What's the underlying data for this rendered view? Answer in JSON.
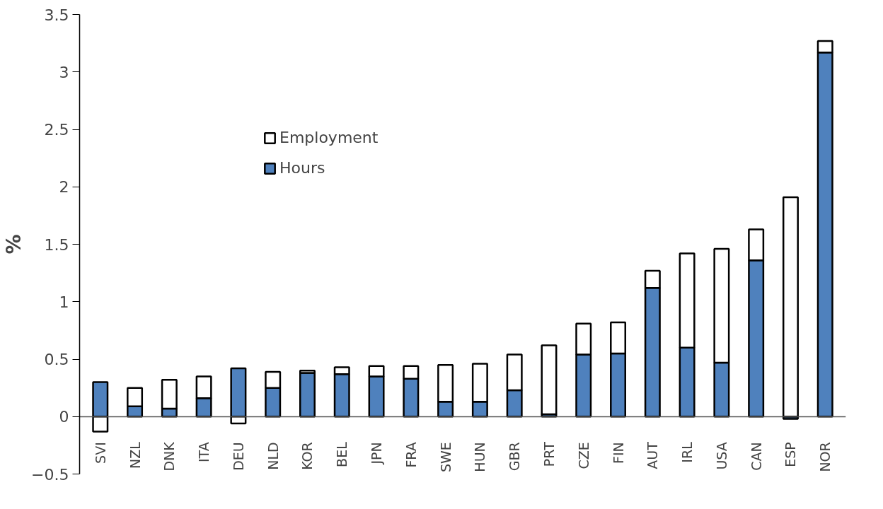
{
  "chart_data": {
    "type": "bar",
    "stacked": true,
    "ylabel": "%",
    "categories": [
      "SVI",
      "NZL",
      "DNK",
      "ITA",
      "DEU",
      "NLD",
      "KOR",
      "BEL",
      "JPN",
      "FRA",
      "SWE",
      "HUN",
      "GBR",
      "PRT",
      "CZE",
      "FIN",
      "AUT",
      "IRL",
      "USA",
      "CAN",
      "ESP",
      "NOR"
    ],
    "series": [
      {
        "name": "Hours",
        "color": "#4f81bd",
        "values": [
          0.3,
          0.09,
          0.07,
          0.16,
          0.42,
          0.25,
          0.38,
          0.37,
          0.35,
          0.33,
          0.13,
          0.13,
          0.23,
          0.02,
          0.54,
          0.55,
          1.12,
          0.6,
          0.47,
          1.36,
          -0.02,
          3.17
        ]
      },
      {
        "name": "Employment",
        "color": "#ffffff",
        "values": [
          -0.13,
          0.16,
          0.25,
          0.19,
          -0.06,
          0.14,
          0.02,
          0.06,
          0.09,
          0.11,
          0.32,
          0.33,
          0.31,
          0.6,
          0.27,
          0.27,
          0.15,
          0.82,
          0.99,
          0.27,
          1.91,
          0.1
        ]
      }
    ],
    "ylim": [
      -0.5,
      3.5
    ],
    "yticks": [
      -0.5,
      0,
      0.5,
      1,
      1.5,
      2,
      2.5,
      3,
      3.5
    ],
    "grid": false,
    "legend": "top left"
  }
}
